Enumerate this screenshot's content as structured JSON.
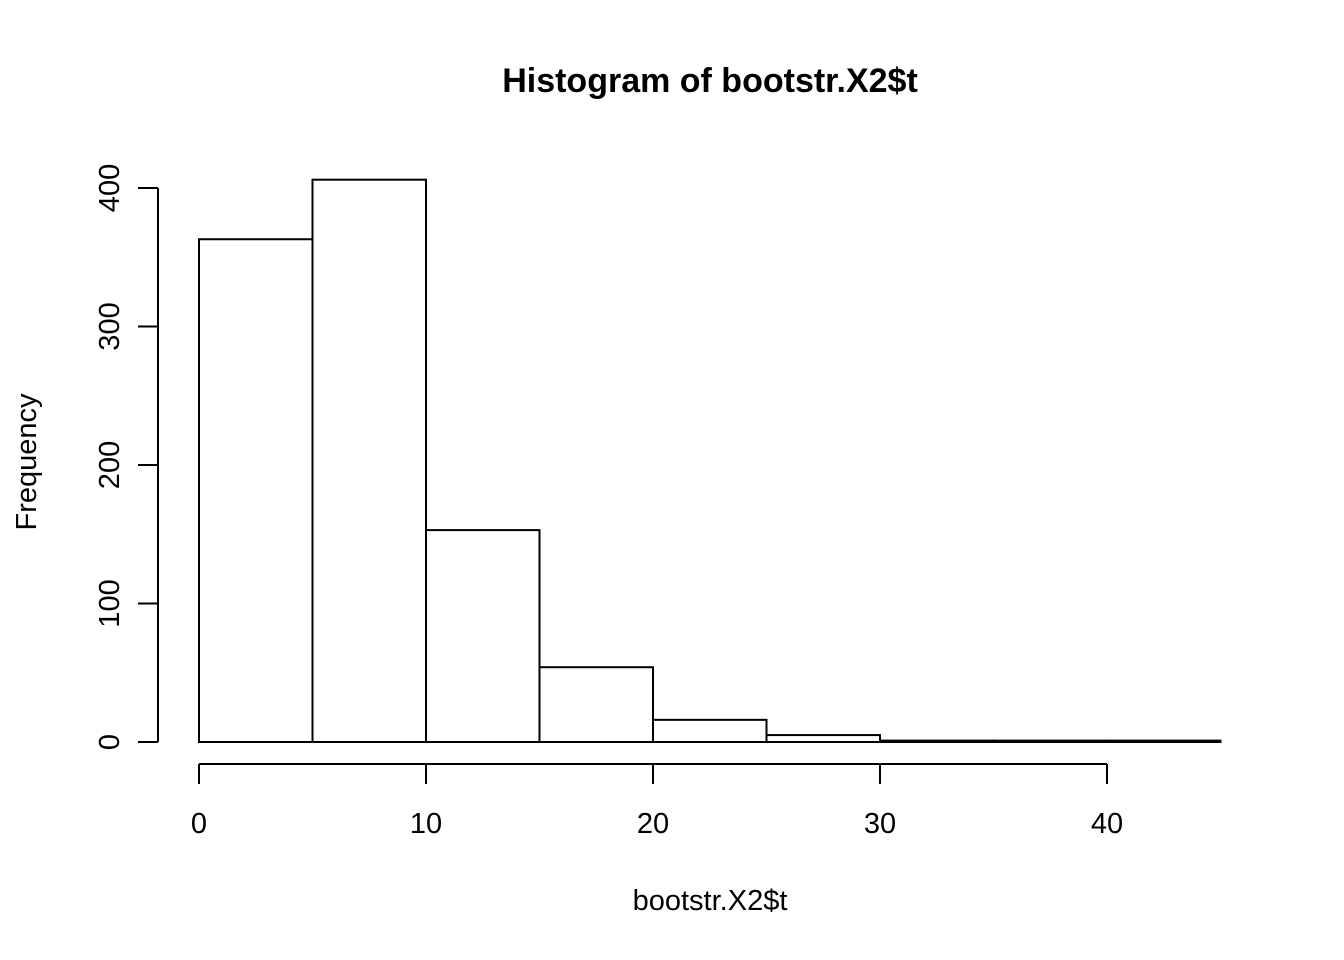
{
  "chart_data": {
    "type": "bar",
    "title": "Histogram of bootstr.X2$t",
    "xlabel": "bootstr.X2$t",
    "ylabel": "Frequency",
    "bin_edges": [
      0,
      5,
      10,
      15,
      20,
      25,
      30,
      35,
      40,
      45
    ],
    "values": [
      363,
      406,
      153,
      54,
      16,
      5,
      1,
      1,
      1
    ],
    "xlim": [
      0,
      45
    ],
    "ylim": [
      0,
      400
    ],
    "x_ticks": [
      0,
      10,
      20,
      30,
      40
    ],
    "y_ticks": [
      0,
      100,
      200,
      300,
      400
    ],
    "x_tick_labels": [
      "0",
      "10",
      "20",
      "30",
      "40"
    ],
    "y_tick_labels": [
      "0",
      "100",
      "200",
      "300",
      "400"
    ],
    "grid": false,
    "legend": "none"
  }
}
